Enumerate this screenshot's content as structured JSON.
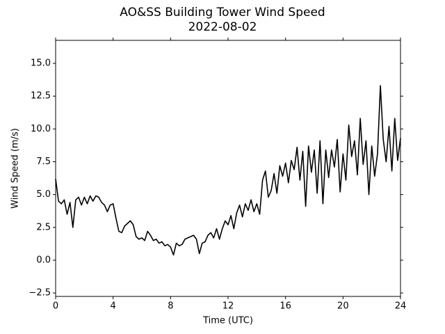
{
  "chart_data": {
    "type": "line",
    "title": "AO&SS Building Tower Wind Speed",
    "subtitle": "2022-08-02",
    "x_label": "Time (UTC)",
    "y_label": "Wind Speed (m/s)",
    "xlim": [
      0,
      24
    ],
    "xticks": [
      0,
      4,
      8,
      12,
      16,
      20,
      24
    ],
    "ylim": [
      -2.76,
      16.75
    ],
    "yticks": [
      {
        "value": -2.5,
        "label": "−2.5"
      },
      {
        "value": 0,
        "label": "0.0"
      },
      2.5,
      {
        "value": 5,
        "label": "5.0"
      },
      7.5,
      {
        "value": 10,
        "label": "10.0"
      },
      12.5,
      {
        "value": 15,
        "label": "15.0"
      }
    ],
    "grid": false,
    "series": [
      {
        "color": "#000000",
        "x": [
          0,
          0.2,
          0.4,
          0.6,
          0.8,
          1,
          1.2,
          1.4,
          1.6,
          1.8,
          2,
          2.2,
          2.4,
          2.6,
          2.8,
          3,
          3.2,
          3.4,
          3.6,
          3.8,
          4,
          4.2,
          4.4,
          4.6,
          4.8,
          5,
          5.2,
          5.4,
          5.6,
          5.8,
          6,
          6.2,
          6.4,
          6.6,
          6.8,
          7,
          7.2,
          7.4,
          7.6,
          7.8,
          8,
          8.2,
          8.4,
          8.6,
          8.8,
          9,
          9.2,
          9.4,
          9.6,
          9.8,
          10,
          10.2,
          10.4,
          10.6,
          10.8,
          11,
          11.2,
          11.4,
          11.6,
          11.8,
          12,
          12.2,
          12.4,
          12.6,
          12.8,
          13,
          13.2,
          13.4,
          13.6,
          13.8,
          14,
          14.2,
          14.4,
          14.6,
          14.8,
          15,
          15.2,
          15.4,
          15.6,
          15.8,
          16,
          16.2,
          16.4,
          16.6,
          16.8,
          17,
          17.2,
          17.4,
          17.6,
          17.8,
          18,
          18.2,
          18.4,
          18.6,
          18.8,
          19,
          19.2,
          19.4,
          19.6,
          19.8,
          20,
          20.2,
          20.4,
          20.6,
          20.8,
          21,
          21.2,
          21.4,
          21.6,
          21.8,
          22,
          22.2,
          22.4,
          22.6,
          22.8,
          23,
          23.2,
          23.4,
          23.6,
          23.8,
          24
        ],
        "values": [
          6.2,
          4.5,
          4.3,
          4.6,
          3.5,
          4.4,
          2.5,
          4.6,
          4.8,
          4.2,
          4.8,
          4.3,
          4.9,
          4.5,
          4.9,
          4.8,
          4.4,
          4.2,
          3.7,
          4.2,
          4.3,
          3.2,
          2.2,
          2.1,
          2.6,
          2.8,
          3.0,
          2.7,
          1.8,
          1.6,
          1.7,
          1.5,
          2.2,
          1.9,
          1.5,
          1.6,
          1.3,
          1.4,
          1.1,
          1.2,
          1.0,
          0.4,
          1.3,
          1.1,
          1.2,
          1.6,
          1.7,
          1.8,
          1.9,
          1.6,
          0.5,
          1.3,
          1.4,
          1.9,
          2.1,
          1.7,
          2.4,
          1.6,
          2.4,
          3.0,
          2.7,
          3.4,
          2.4,
          3.6,
          4.2,
          3.3,
          4.3,
          3.8,
          4.6,
          3.7,
          4.3,
          3.5,
          6.1,
          6.8,
          4.8,
          5.3,
          6.6,
          5.1,
          7.2,
          6.4,
          7.4,
          5.9,
          7.6,
          6.9,
          8.6,
          6.1,
          8.3,
          4.1,
          8.7,
          6.7,
          8.4,
          5.1,
          9.1,
          4.3,
          8.4,
          6.3,
          8.4,
          7.1,
          9.2,
          5.2,
          8.1,
          6.1,
          10.3,
          7.9,
          9.1,
          6.5,
          10.8,
          7.3,
          9.1,
          5.0,
          8.7,
          6.4,
          8.1,
          13.3,
          9.2,
          7.5,
          10.2,
          6.8,
          10.8,
          7.6,
          9.3
        ]
      }
    ]
  }
}
